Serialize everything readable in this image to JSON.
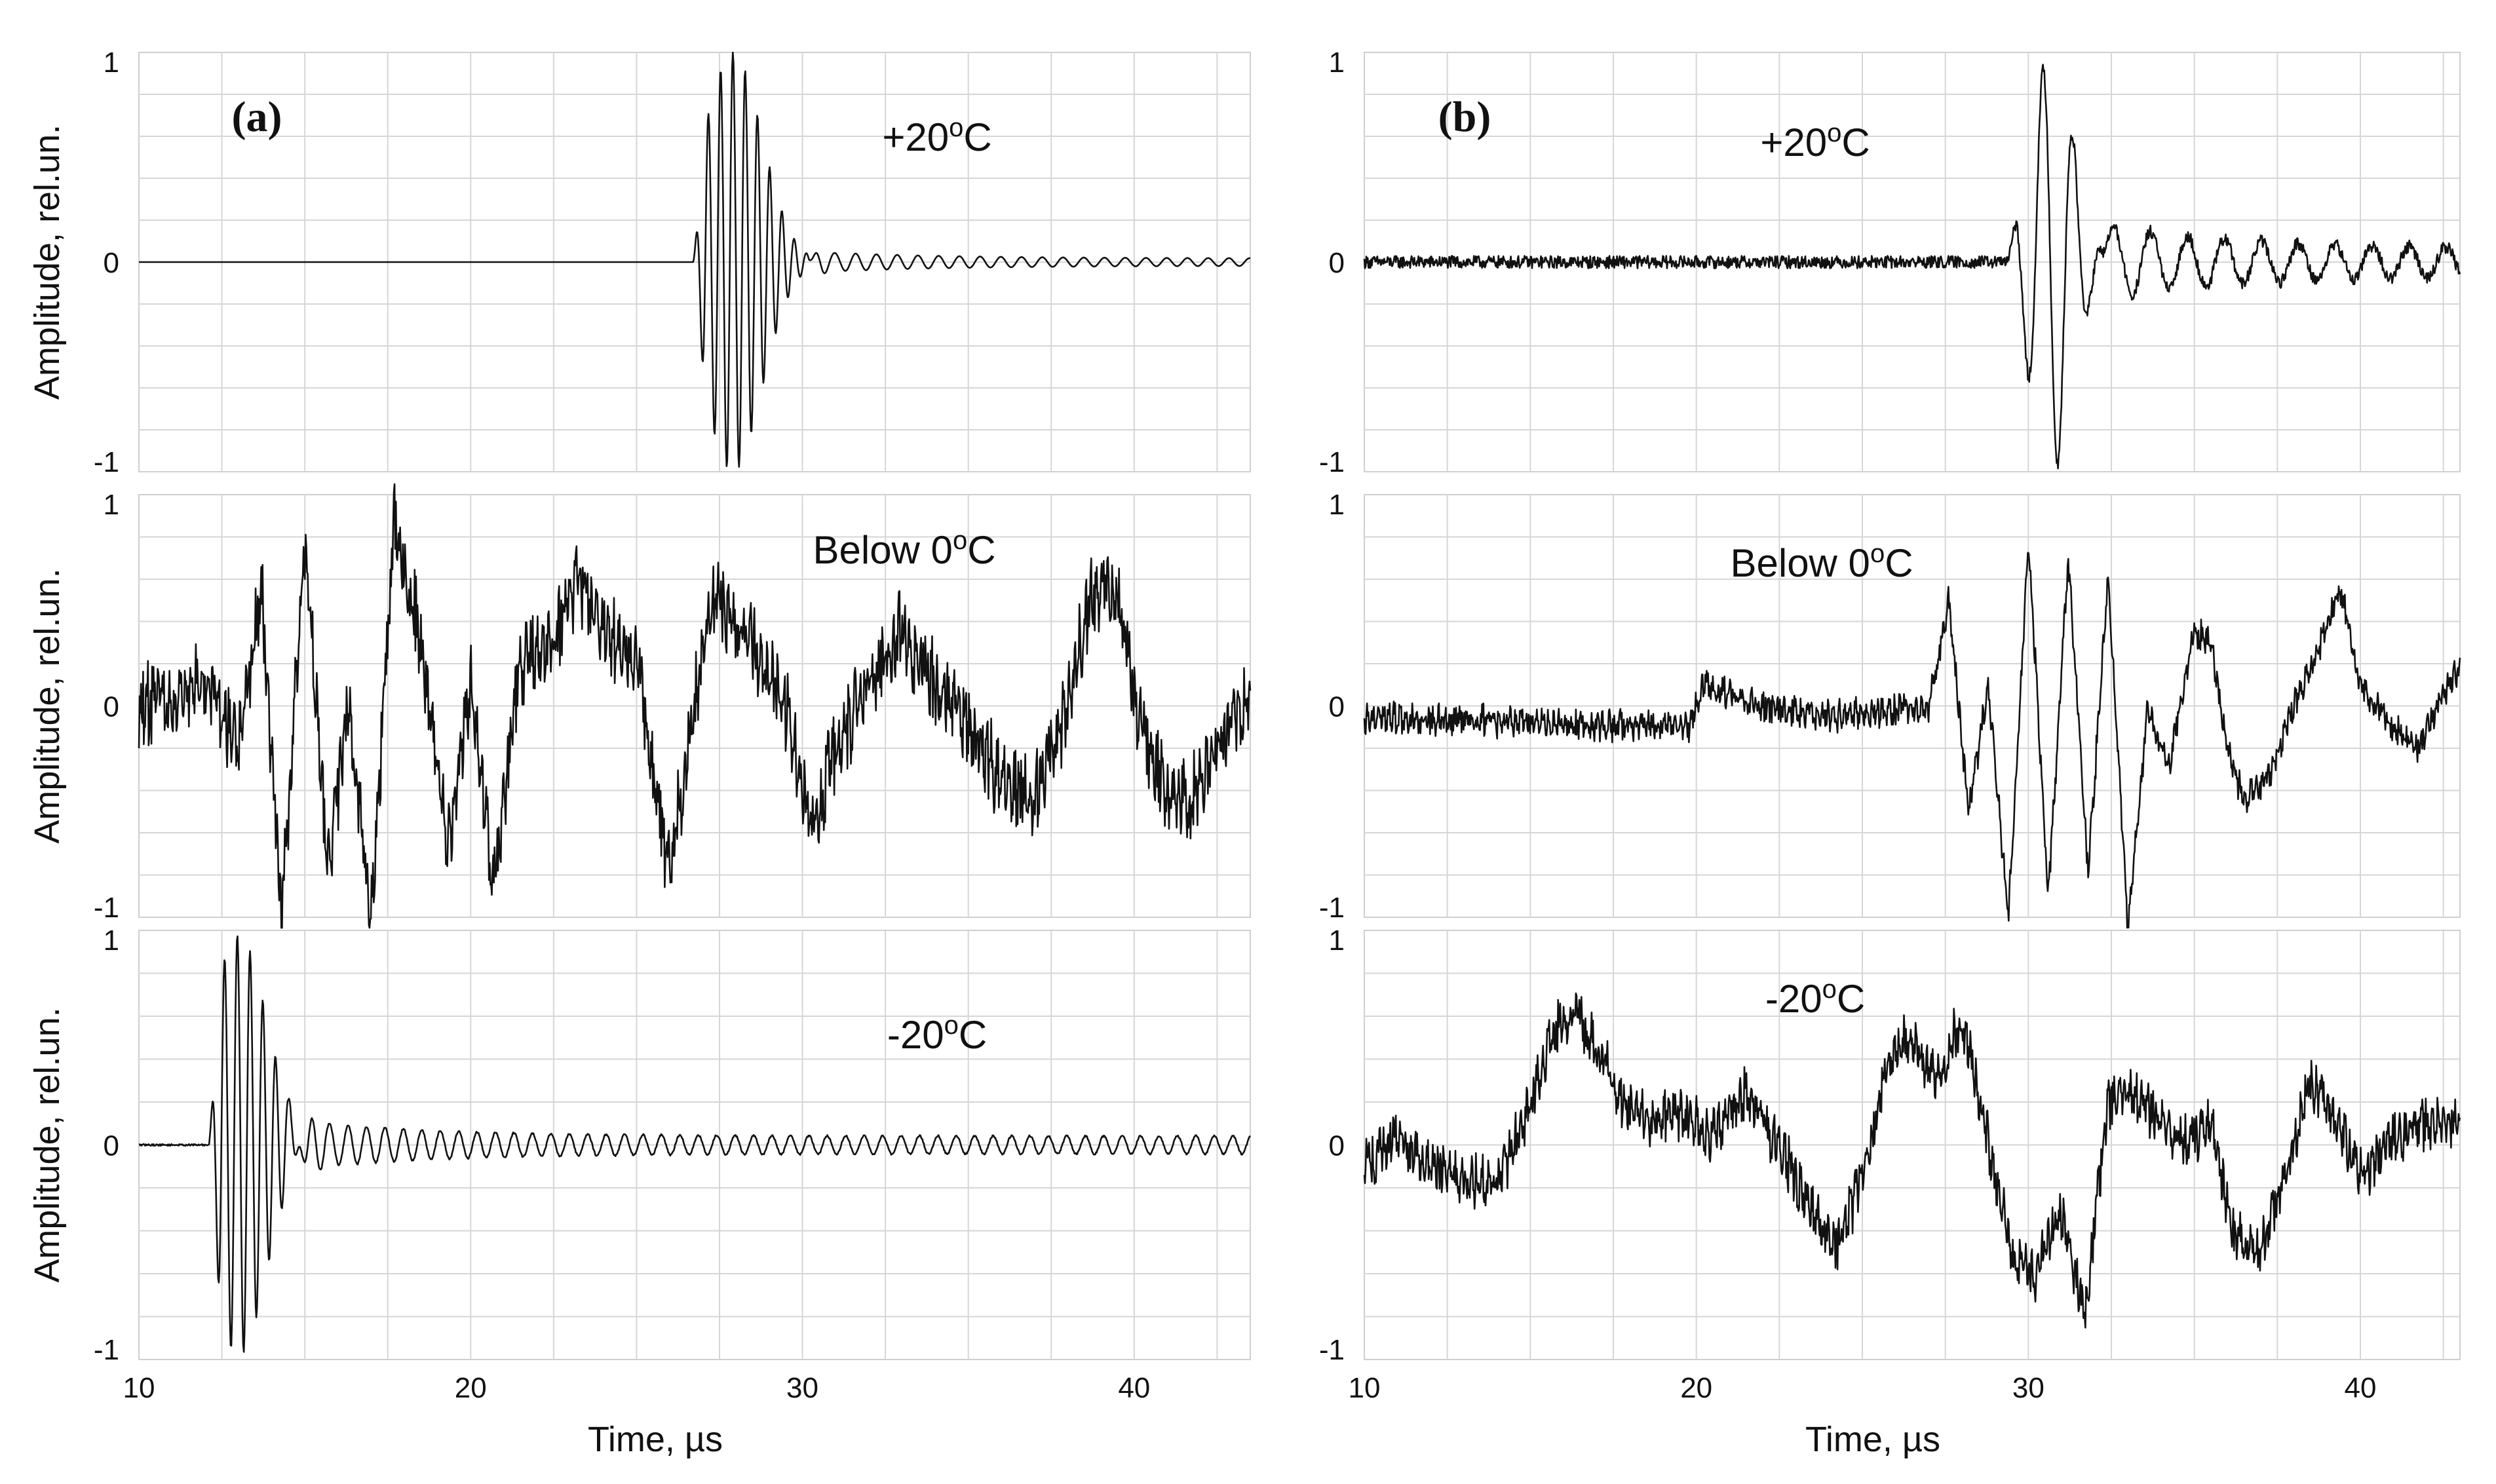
{
  "chart_data": [
    {
      "type": "line",
      "panel": "(a)",
      "traces": [
        {
          "label": "+20°C",
          "label_base": "+20",
          "label_sup": "o",
          "label_unit": "C",
          "signal": {
            "kind": "burst",
            "center": 27.9,
            "width": 1.25,
            "freq": 2.7,
            "amp": 1.0,
            "start": 26.7,
            "tail_amp": 0.05,
            "tail_freq": 1.6,
            "tail_start": 30.2,
            "noise": 0.0
          }
        },
        {
          "label": "Below 0°C",
          "label_base": "Below 0",
          "label_sup": "o",
          "label_unit": "C",
          "signal": {
            "kind": "noisy",
            "noise": 0.18,
            "lf_amp": 0.45,
            "lf_freq": 0.22,
            "keypoints": [
              [
                10,
                0.0
              ],
              [
                12,
                0.1
              ],
              [
                13,
                -0.2
              ],
              [
                13.7,
                0.55
              ],
              [
                14.3,
                -1.0
              ],
              [
                15,
                0.8
              ],
              [
                15.7,
                -0.8
              ],
              [
                16.3,
                0.0
              ],
              [
                17,
                -1.05
              ],
              [
                17.7,
                0.9
              ],
              [
                18.5,
                0.3
              ],
              [
                19.3,
                -0.65
              ],
              [
                20,
                0.1
              ],
              [
                20.7,
                -0.85
              ],
              [
                21.5,
                0.2
              ],
              [
                22.5,
                0.3
              ],
              [
                23.2,
                0.6
              ],
              [
                24,
                0.35
              ],
              [
                25,
                0.2
              ],
              [
                26,
                -0.8
              ],
              [
                26.7,
                0.0
              ],
              [
                27.3,
                0.5
              ],
              [
                28.5,
                0.3
              ],
              [
                29.5,
                0.0
              ],
              [
                30.3,
                -0.6
              ],
              [
                31,
                -0.2
              ],
              [
                32,
                0.1
              ],
              [
                33,
                0.35
              ],
              [
                34,
                0.1
              ],
              [
                35,
                -0.1
              ],
              [
                36,
                -0.35
              ],
              [
                37,
                -0.45
              ],
              [
                38,
                0.0
              ],
              [
                38.7,
                0.55
              ],
              [
                39.5,
                0.5
              ],
              [
                40.2,
                -0.1
              ],
              [
                41,
                -0.4
              ],
              [
                41.7,
                -0.45
              ],
              [
                42.5,
                -0.2
              ],
              [
                43.5,
                0.1
              ]
            ]
          }
        },
        {
          "label": "-20°C",
          "label_base": "-20",
          "label_sup": "o",
          "label_unit": "C",
          "signal": {
            "kind": "burst",
            "center": 13.0,
            "width": 1.2,
            "freq": 2.6,
            "amp": 0.98,
            "start": 12.1,
            "tail_amp": 0.12,
            "tail_freq": 1.8,
            "tail_start": 14.5,
            "noise": 0.004
          }
        }
      ],
      "x_ticks": [
        "10",
        "20",
        "30",
        "40"
      ],
      "xlim": [
        10,
        43.5
      ],
      "ylim": [
        -1,
        1
      ],
      "y_ticks": [
        "1",
        "0",
        "-1"
      ],
      "ylabel": "Amplitude, rel.un.",
      "xlabel": "Time, µs",
      "grid": true
    },
    {
      "type": "line",
      "panel": "(b)",
      "traces": [
        {
          "label": "+20°C",
          "label_base": "+20",
          "label_sup": "o",
          "label_unit": "C",
          "signal": {
            "kind": "burst",
            "center": 30.7,
            "width": 0.9,
            "freq": 1.1,
            "amp": 1.0,
            "start": 29.3,
            "tail_amp": 0.18,
            "tail_freq": 0.9,
            "tail_start": 32.3,
            "noise": 0.03
          }
        },
        {
          "label": "Below 0°C",
          "label_base": "Below 0",
          "label_sup": "o",
          "label_unit": "C",
          "signal": {
            "kind": "noisy",
            "noise": 0.07,
            "lf_amp": 0.0,
            "lf_freq": 0.2,
            "keypoints": [
              [
                10,
                -0.05
              ],
              [
                15,
                -0.08
              ],
              [
                19.8,
                -0.1
              ],
              [
                20.2,
                0.1
              ],
              [
                22,
                0.0
              ],
              [
                24,
                -0.05
              ],
              [
                27,
                0.0
              ],
              [
                27.6,
                0.5
              ],
              [
                28.2,
                -0.5
              ],
              [
                28.8,
                0.1
              ],
              [
                29.4,
                -1.0
              ],
              [
                30.0,
                0.8
              ],
              [
                30.6,
                -0.9
              ],
              [
                31.2,
                0.7
              ],
              [
                31.8,
                -0.8
              ],
              [
                32.4,
                0.6
              ],
              [
                33.0,
                -1.05
              ],
              [
                33.6,
                0.0
              ],
              [
                34.2,
                -0.3
              ],
              [
                35,
                0.35
              ],
              [
                35.5,
                0.3
              ],
              [
                36,
                -0.2
              ],
              [
                36.5,
                -0.45
              ],
              [
                37.2,
                -0.35
              ],
              [
                38,
                0.0
              ],
              [
                38.8,
                0.3
              ],
              [
                39.4,
                0.55
              ],
              [
                40,
                0.1
              ],
              [
                41,
                -0.1
              ],
              [
                41.7,
                -0.2
              ],
              [
                42.5,
                0.05
              ],
              [
                43,
                0.2
              ],
              [
                43.5,
                -0.1
              ]
            ]
          }
        },
        {
          "label": "-20°C",
          "label_base": "-20",
          "label_sup": "o",
          "label_unit": "C",
          "signal": {
            "kind": "noisy",
            "noise": 0.12,
            "lf_amp": 0.0,
            "lf_freq": 0.2,
            "keypoints": [
              [
                10,
                -0.1
              ],
              [
                11,
                0.05
              ],
              [
                12,
                -0.1
              ],
              [
                13,
                -0.15
              ],
              [
                14,
                -0.2
              ],
              [
                14.8,
                0.1
              ],
              [
                15.5,
                0.45
              ],
              [
                16.3,
                0.65
              ],
              [
                17,
                0.45
              ],
              [
                17.8,
                0.2
              ],
              [
                18.5,
                0.1
              ],
              [
                19.5,
                0.15
              ],
              [
                20.5,
                0.05
              ],
              [
                21.5,
                0.25
              ],
              [
                22.2,
                0.05
              ],
              [
                23,
                -0.15
              ],
              [
                23.6,
                -0.35
              ],
              [
                24.3,
                -0.45
              ],
              [
                25,
                -0.15
              ],
              [
                25.8,
                0.4
              ],
              [
                26.5,
                0.5
              ],
              [
                27.2,
                0.3
              ],
              [
                28,
                0.6
              ],
              [
                28.8,
                0.0
              ],
              [
                29.5,
                -0.5
              ],
              [
                30.2,
                -0.6
              ],
              [
                31,
                -0.3
              ],
              [
                31.7,
                -0.8
              ],
              [
                32.4,
                0.2
              ],
              [
                33.2,
                0.25
              ],
              [
                34,
                0.1
              ],
              [
                34.8,
                0.0
              ],
              [
                35.5,
                0.1
              ],
              [
                36.2,
                -0.4
              ],
              [
                37,
                -0.5
              ],
              [
                37.8,
                -0.1
              ],
              [
                38.5,
                0.3
              ],
              [
                39.2,
                0.15
              ],
              [
                40,
                -0.15
              ],
              [
                41,
                0.05
              ],
              [
                42,
                0.1
              ],
              [
                43,
                0.1
              ],
              [
                43.5,
                0.05
              ]
            ]
          }
        }
      ],
      "x_ticks": [
        "10",
        "20",
        "30",
        "40"
      ],
      "xlim": [
        10,
        43
      ],
      "ylim": [
        -1,
        1
      ],
      "y_ticks": [
        "1",
        "0",
        "-1"
      ],
      "ylabel": "",
      "xlabel": "Time, µs",
      "grid": true
    }
  ]
}
